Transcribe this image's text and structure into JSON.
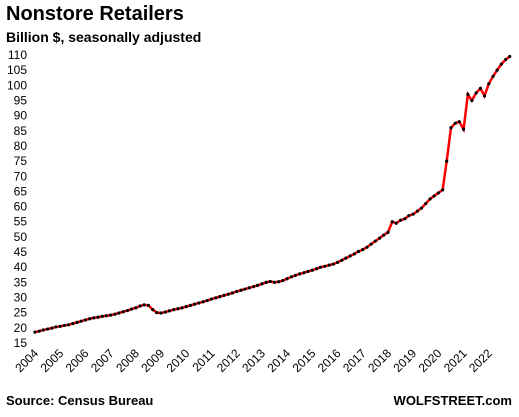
{
  "chart_data": {
    "type": "line",
    "title": "Nonstore Retailers",
    "subtitle": "Billion $, seasonally adjusted",
    "source": "Source: Census Bureau",
    "watermark": "WOLFSTREET.com",
    "color": "#ff0000",
    "marker_color": "#000000",
    "x": [
      2004,
      2004.17,
      2004.33,
      2004.5,
      2004.67,
      2004.83,
      2005,
      2005.17,
      2005.33,
      2005.5,
      2005.67,
      2005.83,
      2006,
      2006.17,
      2006.33,
      2006.5,
      2006.67,
      2006.83,
      2007,
      2007.17,
      2007.33,
      2007.5,
      2007.67,
      2007.83,
      2008,
      2008.17,
      2008.33,
      2008.5,
      2008.67,
      2008.83,
      2009,
      2009.17,
      2009.33,
      2009.5,
      2009.67,
      2009.83,
      2010,
      2010.17,
      2010.33,
      2010.5,
      2010.67,
      2010.83,
      2011,
      2011.17,
      2011.33,
      2011.5,
      2011.67,
      2011.83,
      2012,
      2012.17,
      2012.33,
      2012.5,
      2012.67,
      2012.83,
      2013,
      2013.17,
      2013.33,
      2013.5,
      2013.67,
      2013.83,
      2014,
      2014.17,
      2014.33,
      2014.5,
      2014.67,
      2014.83,
      2015,
      2015.17,
      2015.33,
      2015.5,
      2015.67,
      2015.83,
      2016,
      2016.17,
      2016.33,
      2016.5,
      2016.67,
      2016.83,
      2017,
      2017.17,
      2017.33,
      2017.5,
      2017.67,
      2017.83,
      2018,
      2018.17,
      2018.33,
      2018.5,
      2018.67,
      2018.83,
      2019,
      2019.17,
      2019.33,
      2019.5,
      2019.67,
      2019.83,
      2020,
      2020.17,
      2020.33,
      2020.5,
      2020.67,
      2020.83,
      2021,
      2021.17,
      2021.33,
      2021.5,
      2021.67,
      2021.83,
      2022,
      2022.17,
      2022.33,
      2022.5,
      2022.67,
      2022.83
    ],
    "values": [
      18.6,
      18.9,
      19.3,
      19.6,
      19.9,
      20.3,
      20.5,
      20.8,
      21.0,
      21.4,
      21.8,
      22.2,
      22.6,
      23.0,
      23.3,
      23.5,
      23.8,
      24.0,
      24.2,
      24.5,
      24.9,
      25.3,
      25.7,
      26.2,
      26.6,
      27.2,
      27.6,
      27.4,
      26.0,
      25.0,
      24.9,
      25.2,
      25.6,
      26.0,
      26.3,
      26.6,
      27.0,
      27.4,
      27.8,
      28.2,
      28.6,
      29.0,
      29.5,
      29.9,
      30.3,
      30.7,
      31.1,
      31.5,
      32.0,
      32.4,
      32.8,
      33.2,
      33.6,
      34.0,
      34.5,
      35.0,
      35.3,
      35.0,
      35.2,
      35.6,
      36.2,
      36.8,
      37.3,
      37.8,
      38.2,
      38.6,
      39.0,
      39.5,
      40.0,
      40.3,
      40.7,
      41.0,
      41.6,
      42.3,
      43.0,
      43.7,
      44.4,
      45.2,
      45.8,
      46.6,
      47.6,
      48.6,
      49.6,
      50.6,
      51.5,
      55.0,
      54.5,
      55.5,
      56.0,
      57.0,
      57.5,
      58.5,
      59.5,
      61.0,
      62.5,
      63.5,
      64.5,
      65.5,
      75.0,
      86.0,
      87.5,
      88.0,
      85.5,
      97.0,
      95.0,
      97.5,
      99.0,
      96.5,
      100.5,
      103.0,
      105.0,
      107.0,
      108.5,
      109.5
    ],
    "xlim": [
      2004,
      2023
    ],
    "xticks": [
      2004,
      2005,
      2006,
      2007,
      2008,
      2009,
      2010,
      2011,
      2012,
      2013,
      2014,
      2015,
      2016,
      2017,
      2018,
      2019,
      2020,
      2021,
      2022
    ],
    "ylim": [
      15,
      110
    ],
    "yticks": [
      15,
      20,
      25,
      30,
      35,
      40,
      45,
      50,
      55,
      60,
      65,
      70,
      75,
      80,
      85,
      90,
      95,
      100,
      105,
      110
    ]
  }
}
